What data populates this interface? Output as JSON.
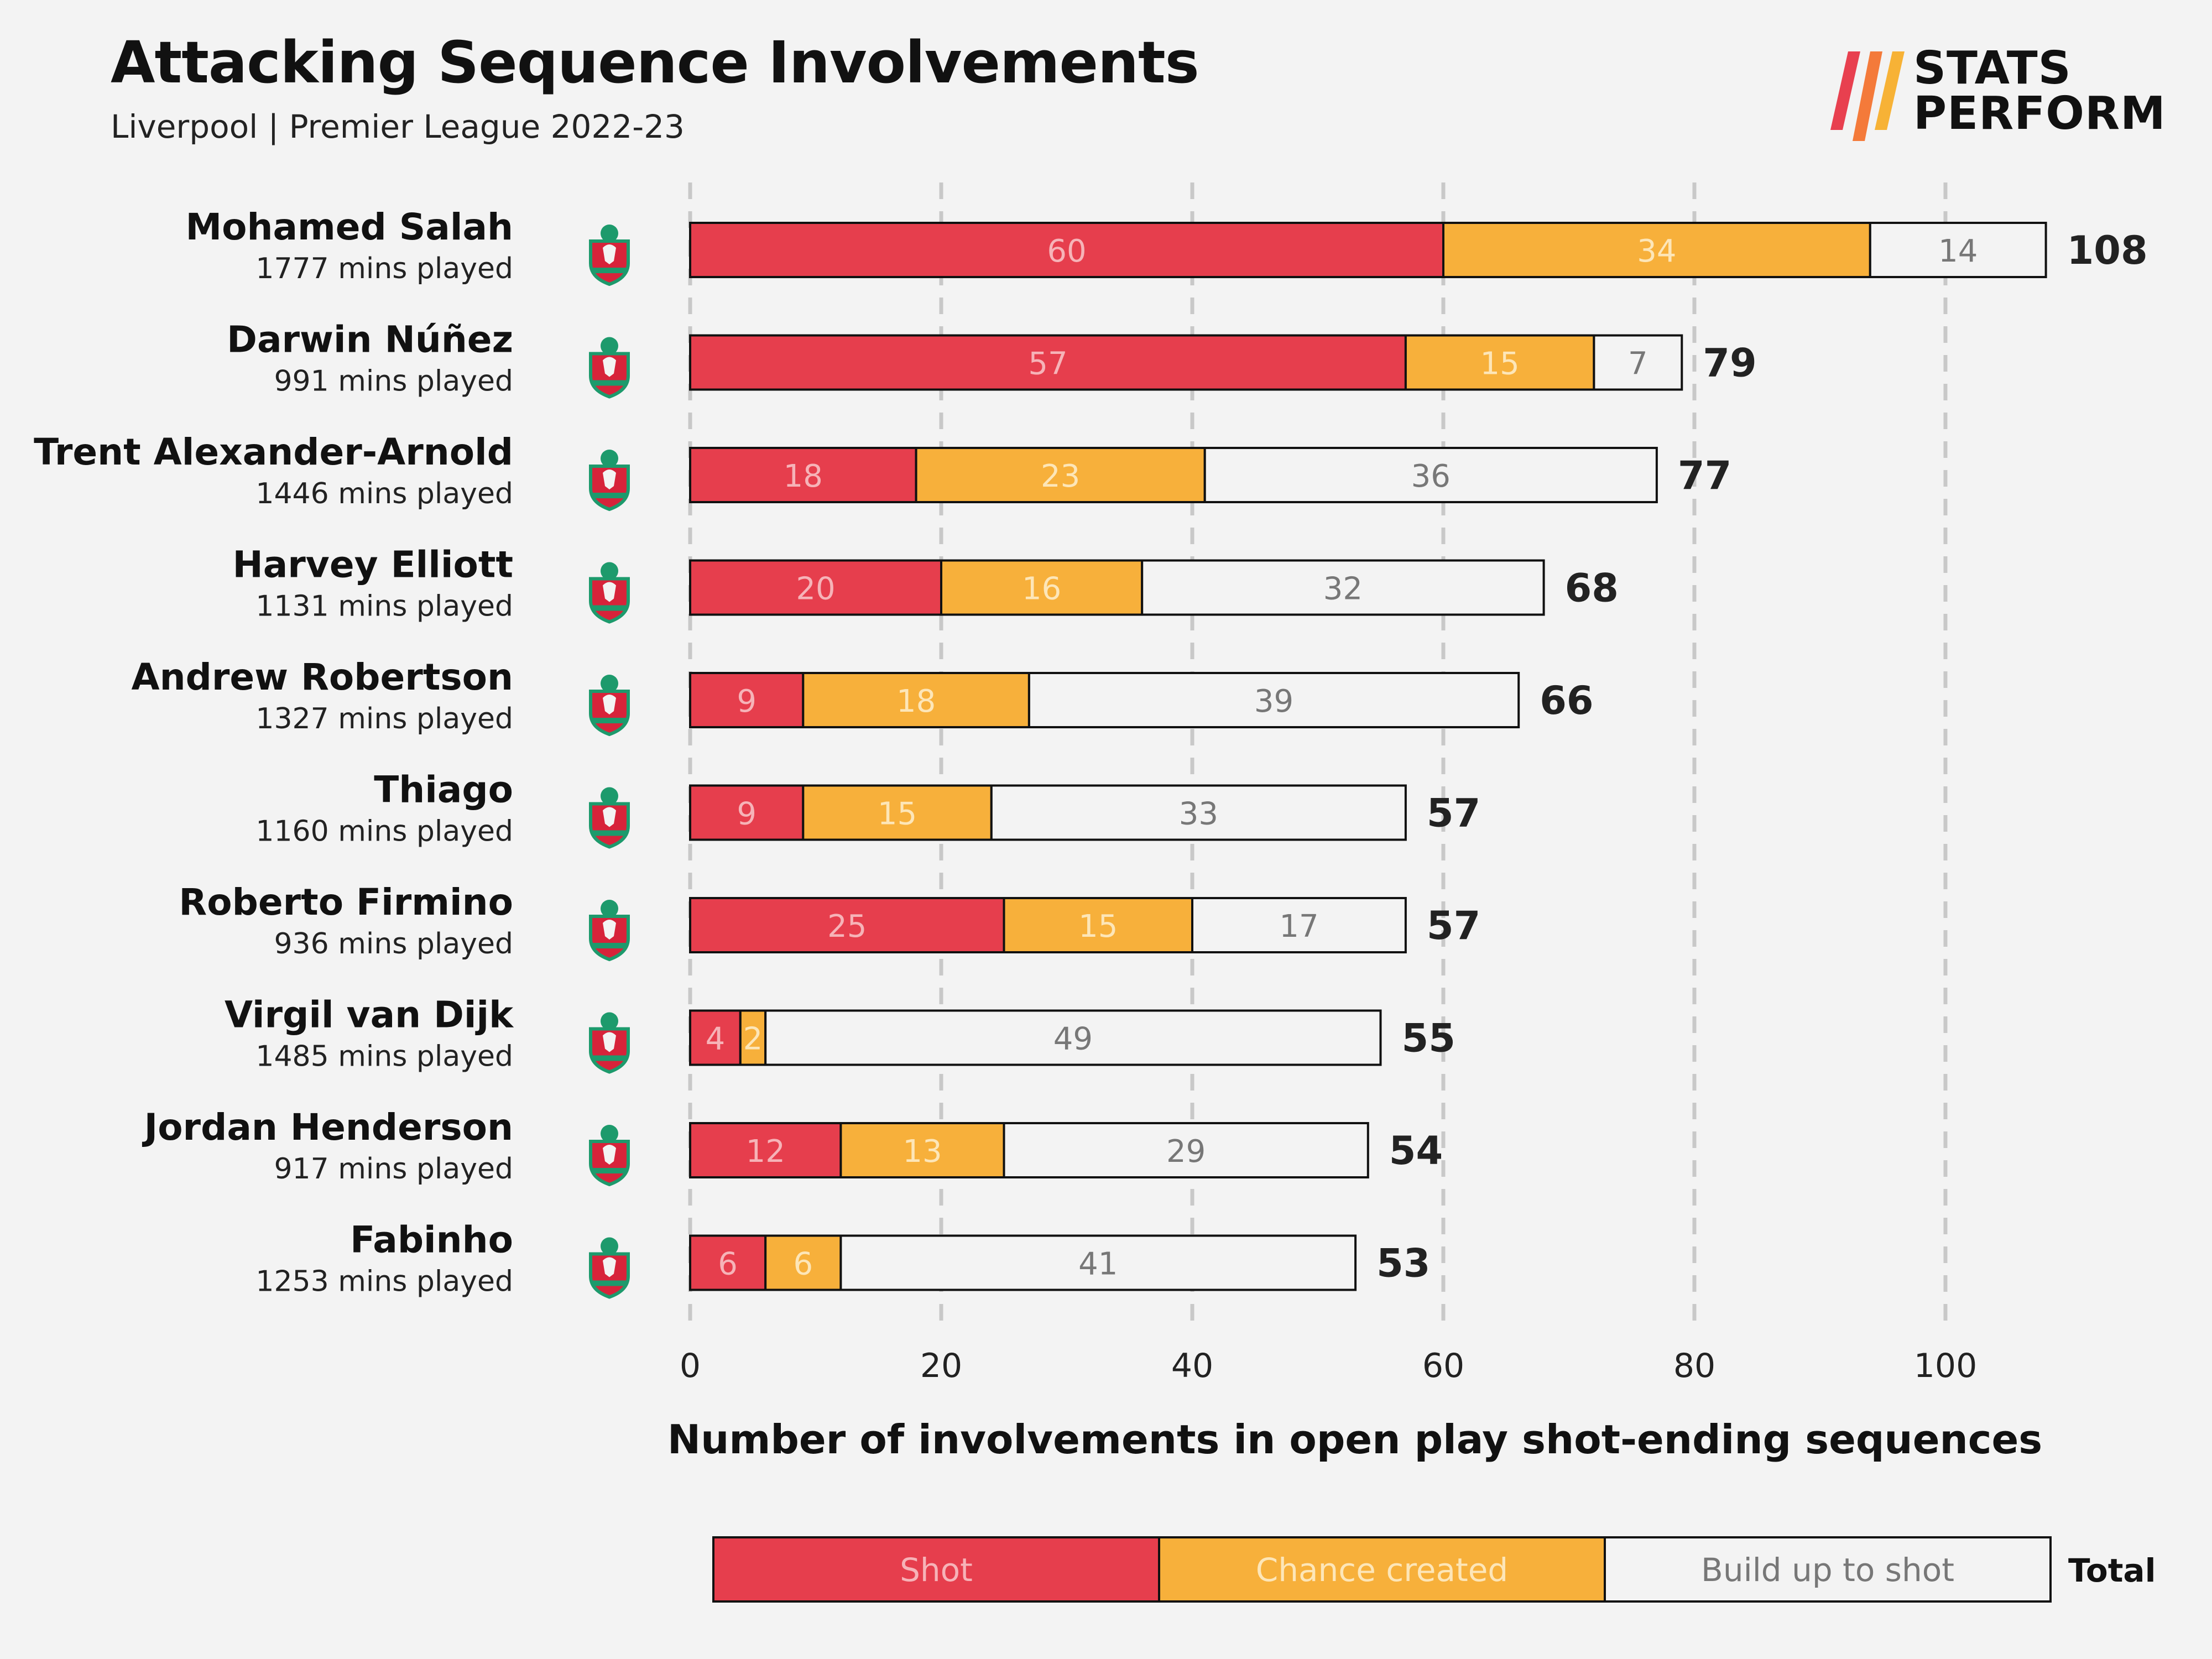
{
  "header": {
    "title": "Attacking Sequence Involvements",
    "subtitle": "Liverpool | Premier League 2022-23"
  },
  "logo": {
    "line1": "STATS",
    "line2": "PERFORM",
    "colors": [
      "#e8404f",
      "#f47a3a",
      "#f7b236"
    ]
  },
  "colors": {
    "shot": "#e63e4d",
    "chance_created": "#f7b03b",
    "build_up": "#f3f3f3",
    "background": "#f3f3f3"
  },
  "chart_data": {
    "type": "bar",
    "orientation": "horizontal",
    "stacked": true,
    "xlabel": "Number of involvements in open play shot-ending sequences",
    "xlim": [
      0,
      110
    ],
    "xticks": [
      0,
      20,
      40,
      60,
      80,
      100
    ],
    "grid": "dashed vertical at ticks",
    "legend_placement": "bottom",
    "series": [
      {
        "name": "Shot",
        "values": [
          60,
          57,
          18,
          20,
          9,
          9,
          25,
          4,
          12,
          6
        ]
      },
      {
        "name": "Chance created",
        "values": [
          34,
          15,
          23,
          16,
          18,
          15,
          15,
          2,
          13,
          6
        ]
      },
      {
        "name": "Build up to shot",
        "values": [
          14,
          7,
          36,
          32,
          39,
          33,
          17,
          49,
          29,
          41
        ]
      }
    ],
    "totals_label": "Total",
    "totals": [
      108,
      79,
      77,
      68,
      66,
      57,
      57,
      55,
      54,
      53
    ],
    "players": [
      {
        "name": "Mohamed Salah",
        "mins": "1777 mins played",
        "crest": "liverpool-crest-icon"
      },
      {
        "name": "Darwin Núñez",
        "mins": "991 mins played",
        "crest": "liverpool-crest-icon"
      },
      {
        "name": "Trent Alexander-Arnold",
        "mins": "1446 mins played",
        "crest": "liverpool-crest-icon"
      },
      {
        "name": "Harvey Elliott",
        "mins": "1131 mins played",
        "crest": "liverpool-crest-icon"
      },
      {
        "name": "Andrew Robertson",
        "mins": "1327 mins played",
        "crest": "liverpool-crest-icon"
      },
      {
        "name": "Thiago",
        "mins": "1160 mins played",
        "crest": "liverpool-crest-icon"
      },
      {
        "name": "Roberto Firmino",
        "mins": "936 mins played",
        "crest": "liverpool-crest-icon"
      },
      {
        "name": "Virgil van Dijk",
        "mins": "1485 mins played",
        "crest": "liverpool-crest-icon"
      },
      {
        "name": "Jordan Henderson",
        "mins": "917 mins played",
        "crest": "liverpool-crest-icon"
      },
      {
        "name": "Fabinho",
        "mins": "1253 mins played",
        "crest": "liverpool-crest-icon"
      }
    ]
  }
}
